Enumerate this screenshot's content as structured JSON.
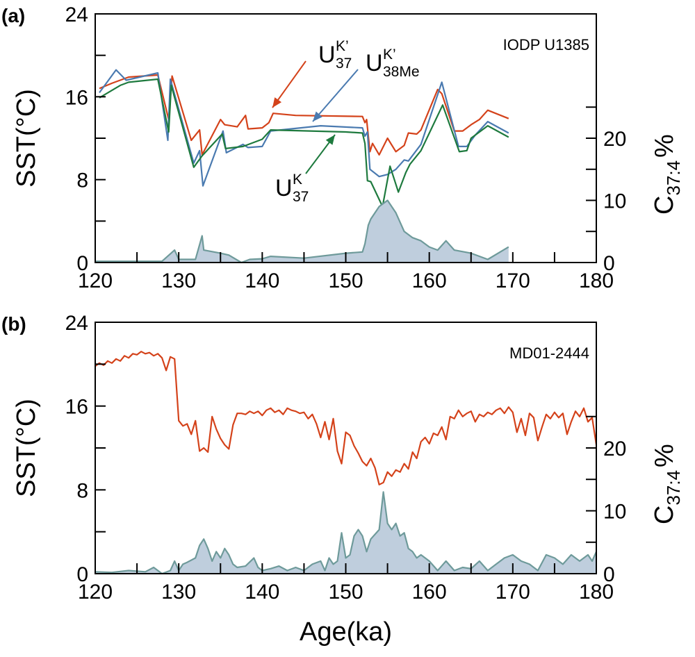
{
  "chart_data": [
    {
      "type": "line",
      "panel_label": "(a)",
      "annotation": "IODP U1385",
      "ylabel": "SST(°C)",
      "y2label": {
        "base": "C",
        "sub": "37:4",
        "tail": "%"
      },
      "xlim": [
        120,
        180
      ],
      "xticks": [
        120,
        130,
        140,
        150,
        160,
        170,
        180
      ],
      "xminor": [
        125,
        135,
        145,
        155,
        165,
        175
      ],
      "ylim": [
        0,
        24
      ],
      "yticks": [
        0,
        8,
        16,
        24
      ],
      "yminor": [
        4,
        12,
        20
      ],
      "y2lim": [
        0,
        40
      ],
      "y2ticks": [
        0,
        10,
        20
      ],
      "y2minor": [
        5,
        15,
        25
      ],
      "series": [
        {
          "label": {
            "base": "U",
            "sup": "K’",
            "sub": "37"
          },
          "color": "#d4421a",
          "x": [
            120.5,
            122,
            124,
            127.5,
            128.8,
            129.2,
            131.5,
            132.5,
            132.8,
            135,
            135.5,
            137,
            138,
            138.3,
            140,
            140.8,
            141.3,
            144,
            152,
            152.3,
            152.5,
            152.9,
            153.2,
            154,
            155,
            156,
            157,
            157.5,
            158.5,
            159,
            161,
            161.5,
            163,
            164,
            165,
            166,
            167,
            169.5
          ],
          "values": [
            16.8,
            17.3,
            17.9,
            18.1,
            13.8,
            18.0,
            11.8,
            12.8,
            10.4,
            13.8,
            13.3,
            13.1,
            14.2,
            12.9,
            13.0,
            13.5,
            14.4,
            14.2,
            14.1,
            13.5,
            13.8,
            10.7,
            11.5,
            10.4,
            12.0,
            10.7,
            11.3,
            12.5,
            12.4,
            12.8,
            16.7,
            16.3,
            12.7,
            12.7,
            13.3,
            13.8,
            14.7,
            13.9
          ]
        },
        {
          "label": {
            "base": "U",
            "sup": "K’",
            "sub": "38Me"
          },
          "color": "#4a7ab0",
          "x": [
            120.5,
            122.5,
            123.7,
            127.5,
            128.7,
            129,
            131.8,
            132.5,
            132.9,
            135.3,
            135.7,
            137.7,
            138.3,
            140,
            141,
            147,
            152,
            152.3,
            152.6,
            152.9,
            154,
            155,
            156,
            157,
            157.5,
            159,
            161.5,
            163.5,
            164.5,
            165.5,
            167,
            169.5
          ],
          "values": [
            16.4,
            18.6,
            17.6,
            18.3,
            11.8,
            17.7,
            9.6,
            10.8,
            7.4,
            12.7,
            10.6,
            11.4,
            11.1,
            11.2,
            12.7,
            13.2,
            13.0,
            12.2,
            12.6,
            9.0,
            8.3,
            8.5,
            9.0,
            9.9,
            9.8,
            11.4,
            17.4,
            11.2,
            11.2,
            12.3,
            13.6,
            12.5
          ]
        },
        {
          "label": {
            "base": "U",
            "sup": "K",
            "sub": "37"
          },
          "color": "#1e7a3e",
          "x": [
            120.5,
            123,
            124,
            127.5,
            128.8,
            129.1,
            131.8,
            132.8,
            135.2,
            135.6,
            137.7,
            140,
            141,
            150,
            152,
            152.3,
            152.6,
            153,
            154.4,
            155.3,
            156.3,
            157.2,
            157.7,
            159,
            161.6,
            163.6,
            164.5,
            165,
            167,
            169.5
          ],
          "values": [
            15.9,
            17.1,
            17.4,
            17.7,
            12.6,
            17.1,
            9.2,
            10.3,
            12.4,
            11.0,
            11.2,
            11.9,
            12.8,
            12.6,
            12.5,
            11.5,
            7.9,
            7.8,
            5.4,
            9.3,
            6.8,
            8.7,
            9.5,
            10.8,
            15.2,
            10.7,
            10.8,
            12.0,
            13.2,
            12.1
          ]
        },
        {
          "axis": "y2",
          "area": true,
          "color": "#6e9a9a",
          "fill": "#bfcedd",
          "x": [
            120,
            128,
            129.5,
            130,
            132,
            132.8,
            133,
            135,
            136,
            137.5,
            138.5,
            140,
            141,
            145,
            150,
            152,
            152.3,
            152.7,
            153,
            154,
            155,
            156,
            157,
            158,
            159,
            160,
            161,
            162,
            163,
            165,
            167,
            169.5
          ],
          "values": [
            0.2,
            0.2,
            2,
            0.5,
            0.5,
            4.3,
            2,
            1.5,
            1.2,
            0,
            0.5,
            0.6,
            1.0,
            0.7,
            1.5,
            1.7,
            3,
            6,
            7,
            9,
            10,
            8,
            5,
            4,
            3.5,
            2.5,
            2,
            3.5,
            2,
            1.5,
            0.5,
            2.5
          ]
        }
      ]
    },
    {
      "type": "line",
      "panel_label": "(b)",
      "annotation": "MD01-2444",
      "ylabel": "SST(°C)",
      "xlabel": "Age(ka)",
      "y2label": {
        "base": "C",
        "sub": "37:4",
        "tail": "%"
      },
      "xlim": [
        120,
        180
      ],
      "xticks": [
        120,
        130,
        140,
        150,
        160,
        170,
        180
      ],
      "xminor": [
        125,
        135,
        145,
        155,
        165,
        175
      ],
      "ylim": [
        0,
        24
      ],
      "yticks": [
        0,
        8,
        16,
        24
      ],
      "yminor": [
        4,
        12,
        20
      ],
      "y2lim": [
        0,
        40
      ],
      "y2ticks": [
        0,
        10,
        20
      ],
      "y2minor": [
        5,
        15,
        25
      ],
      "series": [
        {
          "color": "#d4421a",
          "x": [
            120,
            120.5,
            121,
            121.5,
            122,
            122.5,
            123,
            123.5,
            124,
            124.5,
            125,
            125.5,
            126,
            126.5,
            127,
            127.5,
            128,
            128.5,
            129,
            129.5,
            130,
            130.5,
            131,
            131.5,
            132,
            132.5,
            133,
            133.5,
            134,
            134.5,
            135,
            135.5,
            136,
            136.5,
            137,
            137.5,
            138,
            138.5,
            139,
            139.5,
            140,
            140.5,
            141,
            141.5,
            142,
            142.5,
            143,
            143.5,
            144,
            144.5,
            145,
            145.5,
            146,
            146.5,
            147,
            147.5,
            148,
            148.5,
            149,
            149.5,
            150,
            150.5,
            151,
            151.5,
            152,
            152.5,
            153,
            153.5,
            154,
            154.5,
            155,
            155.5,
            156,
            156.5,
            157,
            157.5,
            158,
            158.5,
            159,
            159.5,
            160,
            160.5,
            161,
            161.5,
            162,
            162.5,
            163,
            163.5,
            164,
            164.5,
            165,
            165.5,
            166,
            166.5,
            167,
            167.5,
            168,
            168.5,
            169,
            169.5,
            170,
            170.5,
            171,
            171.5,
            172,
            172.5,
            173,
            173.5,
            174,
            174.5,
            175,
            175.5,
            176,
            176.5,
            177,
            177.5,
            178,
            178.5,
            179,
            179.5,
            180
          ],
          "values": [
            19.8,
            20.1,
            19.9,
            20.3,
            20.1,
            20.5,
            20.3,
            20.8,
            20.6,
            21.0,
            20.9,
            21.2,
            21.0,
            21.1,
            20.8,
            21.0,
            20.6,
            19.4,
            20.7,
            20.5,
            14.6,
            14.1,
            14.3,
            13.3,
            14.6,
            11.7,
            12.0,
            11.6,
            15.0,
            13.8,
            12.9,
            12.3,
            11.9,
            14.2,
            15.3,
            15.3,
            15.2,
            15.5,
            15.3,
            15.5,
            15.1,
            15.6,
            15.8,
            15.4,
            15.6,
            15.2,
            15.8,
            15.6,
            15.5,
            15.3,
            15.4,
            14.8,
            15.2,
            14.3,
            13.0,
            14.5,
            12.8,
            14.8,
            11.7,
            10.5,
            13.5,
            13.2,
            12.2,
            11.5,
            10.7,
            10.3,
            11.0,
            10.1,
            8.5,
            8.7,
            9.7,
            9.3,
            9.9,
            9.7,
            10.5,
            10.0,
            11.6,
            11.0,
            12.6,
            13.0,
            12.4,
            13.4,
            13.2,
            14.0,
            12.8,
            15.0,
            14.8,
            15.6,
            15.0,
            15.3,
            15.5,
            14.5,
            15.2,
            15.0,
            15.4,
            15.2,
            15.6,
            15.8,
            15.3,
            15.9,
            15.4,
            13.5,
            14.8,
            13.2,
            15.3,
            14.9,
            12.7,
            14.0,
            15.2,
            14.8,
            15.4,
            14.9,
            15.3,
            13.3,
            14.5,
            15.5,
            15.0,
            15.8,
            14.5,
            14.9,
            12.3
          ]
        },
        {
          "axis": "y2",
          "area": true,
          "color": "#6e9a9a",
          "fill": "#bfcedd",
          "x": [
            120,
            122,
            124,
            126,
            127,
            128,
            129,
            129.5,
            130,
            130.5,
            131,
            132,
            132.5,
            133,
            133.5,
            134,
            134.5,
            135,
            135.5,
            136,
            136.5,
            137,
            138,
            139,
            139.5,
            140,
            141,
            142,
            143,
            144,
            145,
            146,
            147,
            147.5,
            148,
            148.5,
            149,
            149.5,
            150,
            150.5,
            151,
            151.5,
            152,
            152.5,
            153,
            154,
            154.5,
            155,
            155.5,
            156,
            156.5,
            157,
            157.5,
            158,
            158.5,
            159,
            160,
            161,
            162,
            163,
            164,
            165,
            166,
            167,
            168,
            169,
            170,
            171,
            172,
            173,
            174,
            175,
            176,
            177,
            178,
            179,
            179.5,
            180
          ],
          "values": [
            0.3,
            0.2,
            0.5,
            0.3,
            1,
            0,
            0.5,
            2,
            0.5,
            1.5,
            1.8,
            2.5,
            4.5,
            5.5,
            4,
            2,
            3.5,
            2.5,
            4,
            3,
            1.5,
            1,
            1.2,
            2.5,
            1,
            0.5,
            0.8,
            1.2,
            0.5,
            1,
            0.5,
            1.5,
            2,
            0.5,
            2.5,
            1.5,
            2,
            6.5,
            2.5,
            3,
            6,
            7,
            6,
            3.5,
            5.5,
            7,
            13,
            8,
            7,
            8,
            6,
            6.5,
            4,
            3.5,
            2.5,
            3,
            2,
            0.5,
            2,
            0.5,
            1,
            0.8,
            2,
            0.5,
            1.5,
            2.5,
            3,
            2,
            1.5,
            0.5,
            3,
            2.5,
            1.5,
            3,
            2,
            3,
            2,
            3.5
          ]
        }
      ]
    }
  ]
}
